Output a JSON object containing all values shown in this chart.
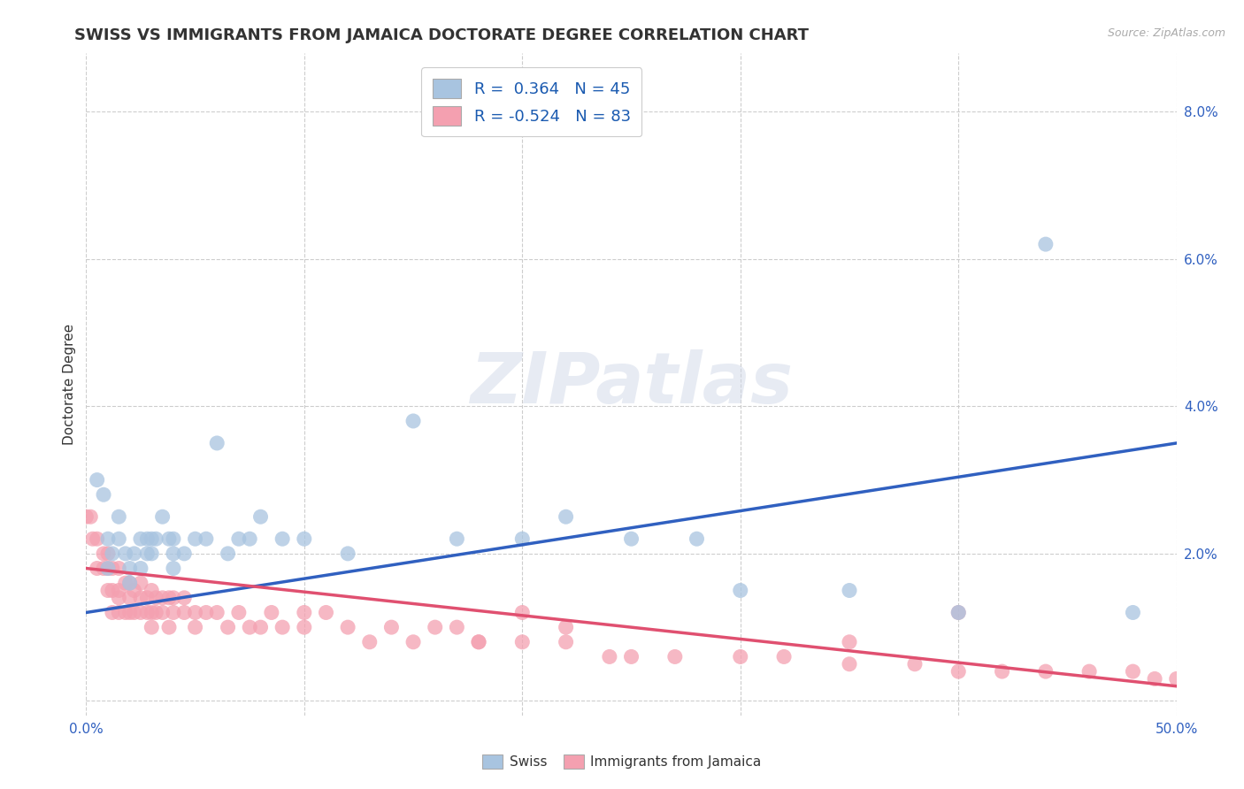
{
  "title": "SWISS VS IMMIGRANTS FROM JAMAICA DOCTORATE DEGREE CORRELATION CHART",
  "source_text": "Source: ZipAtlas.com",
  "ylabel": "Doctorate Degree",
  "xlim": [
    0.0,
    0.5
  ],
  "ylim": [
    -0.002,
    0.088
  ],
  "xticks": [
    0.0,
    0.1,
    0.2,
    0.3,
    0.4,
    0.5
  ],
  "yticks": [
    0.0,
    0.02,
    0.04,
    0.06,
    0.08
  ],
  "ytick_labels": [
    "",
    "2.0%",
    "4.0%",
    "6.0%",
    "8.0%"
  ],
  "xtick_labels": [
    "0.0%",
    "",
    "",
    "",
    "",
    "50.0%"
  ],
  "swiss_r": 0.364,
  "swiss_n": 45,
  "jamaica_r": -0.524,
  "jamaica_n": 83,
  "swiss_color": "#a8c4e0",
  "jamaica_color": "#f4a0b0",
  "swiss_line_color": "#3060c0",
  "jamaica_line_color": "#e05070",
  "watermark_text": "ZIPatlas",
  "legend_swiss_label": "Swiss",
  "legend_jamaica_label": "Immigrants from Jamaica",
  "swiss_scatter_x": [
    0.005,
    0.008,
    0.01,
    0.01,
    0.012,
    0.015,
    0.015,
    0.018,
    0.02,
    0.02,
    0.022,
    0.025,
    0.025,
    0.028,
    0.028,
    0.03,
    0.03,
    0.032,
    0.035,
    0.038,
    0.04,
    0.04,
    0.04,
    0.045,
    0.05,
    0.055,
    0.06,
    0.065,
    0.07,
    0.075,
    0.08,
    0.09,
    0.1,
    0.12,
    0.15,
    0.17,
    0.2,
    0.22,
    0.25,
    0.28,
    0.3,
    0.35,
    0.4,
    0.44,
    0.48
  ],
  "swiss_scatter_y": [
    0.03,
    0.028,
    0.022,
    0.018,
    0.02,
    0.025,
    0.022,
    0.02,
    0.018,
    0.016,
    0.02,
    0.022,
    0.018,
    0.022,
    0.02,
    0.02,
    0.022,
    0.022,
    0.025,
    0.022,
    0.02,
    0.018,
    0.022,
    0.02,
    0.022,
    0.022,
    0.035,
    0.02,
    0.022,
    0.022,
    0.025,
    0.022,
    0.022,
    0.02,
    0.038,
    0.022,
    0.022,
    0.025,
    0.022,
    0.022,
    0.015,
    0.015,
    0.012,
    0.062,
    0.012
  ],
  "jamaica_scatter_x": [
    0.0,
    0.002,
    0.003,
    0.005,
    0.005,
    0.008,
    0.008,
    0.01,
    0.01,
    0.01,
    0.012,
    0.012,
    0.012,
    0.015,
    0.015,
    0.015,
    0.015,
    0.018,
    0.018,
    0.02,
    0.02,
    0.02,
    0.022,
    0.022,
    0.025,
    0.025,
    0.025,
    0.028,
    0.028,
    0.03,
    0.03,
    0.03,
    0.032,
    0.032,
    0.035,
    0.035,
    0.038,
    0.038,
    0.04,
    0.04,
    0.045,
    0.045,
    0.05,
    0.05,
    0.055,
    0.06,
    0.065,
    0.07,
    0.075,
    0.08,
    0.085,
    0.09,
    0.1,
    0.1,
    0.11,
    0.12,
    0.13,
    0.14,
    0.15,
    0.16,
    0.17,
    0.18,
    0.2,
    0.22,
    0.24,
    0.25,
    0.27,
    0.3,
    0.32,
    0.35,
    0.38,
    0.4,
    0.42,
    0.44,
    0.46,
    0.48,
    0.49,
    0.5,
    0.35,
    0.4,
    0.18,
    0.2,
    0.22
  ],
  "jamaica_scatter_y": [
    0.025,
    0.025,
    0.022,
    0.022,
    0.018,
    0.02,
    0.018,
    0.02,
    0.018,
    0.015,
    0.018,
    0.015,
    0.012,
    0.018,
    0.015,
    0.014,
    0.012,
    0.016,
    0.012,
    0.016,
    0.014,
    0.012,
    0.015,
    0.012,
    0.016,
    0.014,
    0.012,
    0.014,
    0.012,
    0.015,
    0.012,
    0.01,
    0.014,
    0.012,
    0.014,
    0.012,
    0.014,
    0.01,
    0.012,
    0.014,
    0.014,
    0.012,
    0.012,
    0.01,
    0.012,
    0.012,
    0.01,
    0.012,
    0.01,
    0.01,
    0.012,
    0.01,
    0.012,
    0.01,
    0.012,
    0.01,
    0.008,
    0.01,
    0.008,
    0.01,
    0.01,
    0.008,
    0.008,
    0.008,
    0.006,
    0.006,
    0.006,
    0.006,
    0.006,
    0.005,
    0.005,
    0.004,
    0.004,
    0.004,
    0.004,
    0.004,
    0.003,
    0.003,
    0.008,
    0.012,
    0.008,
    0.012,
    0.01
  ],
  "swiss_line_x": [
    0.0,
    0.5
  ],
  "swiss_line_y": [
    0.012,
    0.035
  ],
  "jamaica_line_x": [
    0.0,
    0.5
  ],
  "jamaica_line_y": [
    0.018,
    0.002
  ],
  "bg_color": "#ffffff",
  "grid_color": "#c8c8c8",
  "title_fontsize": 13,
  "axis_label_fontsize": 11,
  "tick_fontsize": 11
}
